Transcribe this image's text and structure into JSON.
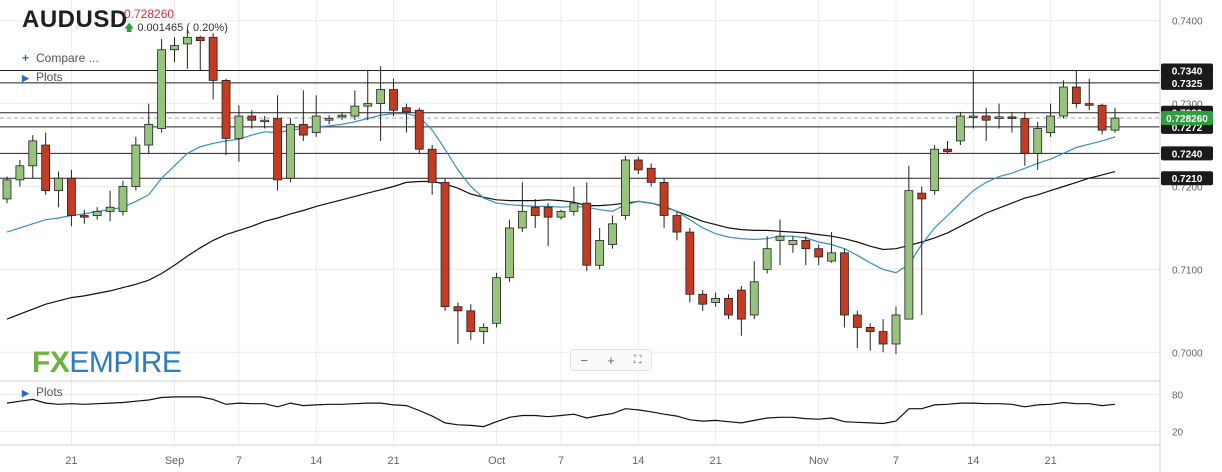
{
  "header": {
    "symbol": "AUDUSD",
    "price": "0.728260",
    "change": "0.001465 ( 0.20%)"
  },
  "menu": {
    "compare": "Compare ...",
    "plots": "Plots",
    "plots_lower": "Plots"
  },
  "zoom": {
    "minus": "−",
    "plus": "+",
    "fit": "⛶"
  },
  "logo": {
    "fx": "FX",
    "empire": "EMPIRE"
  },
  "colors": {
    "up": "#97c37c",
    "down": "#c23b22",
    "ma_fast": "#3a8fc0",
    "ma_slow": "#111111",
    "current": "#2e9e3e"
  },
  "chart_data": {
    "type": "candlestick",
    "ylim": [
      0.6975,
      0.7425
    ],
    "y_ticks": [
      0.7,
      0.71,
      0.72,
      0.73,
      0.74
    ],
    "x_tick_labels": [
      {
        "i": 5,
        "label": "21"
      },
      {
        "i": 13,
        "label": "Sep"
      },
      {
        "i": 18,
        "label": "7"
      },
      {
        "i": 24,
        "label": "14"
      },
      {
        "i": 30,
        "label": "21"
      },
      {
        "i": 38,
        "label": "Oct"
      },
      {
        "i": 43,
        "label": "7"
      },
      {
        "i": 49,
        "label": "14"
      },
      {
        "i": 55,
        "label": "21"
      },
      {
        "i": 63,
        "label": "Nov"
      },
      {
        "i": 69,
        "label": "7"
      },
      {
        "i": 75,
        "label": "14"
      },
      {
        "i": 81,
        "label": "21"
      }
    ],
    "horizontal_levels": [
      {
        "value": 0.734,
        "label": "0.7340"
      },
      {
        "value": 0.7325,
        "label": "0.7325"
      },
      {
        "value": 0.7289,
        "label": "0.7289"
      },
      {
        "value": 0.7272,
        "label": "0.7272"
      },
      {
        "value": 0.724,
        "label": "0.7240"
      },
      {
        "value": 0.721,
        "label": "0.7210"
      }
    ],
    "current_price": {
      "value": 0.72826,
      "label": "0.728260"
    },
    "candles": [
      [
        0.7185,
        0.7208,
        0.718,
        0.7212
      ],
      [
        0.7208,
        0.7225,
        0.72,
        0.7232
      ],
      [
        0.7225,
        0.7255,
        0.721,
        0.7262
      ],
      [
        0.725,
        0.7195,
        0.719,
        0.7265
      ],
      [
        0.7195,
        0.721,
        0.7175,
        0.7218
      ],
      [
        0.721,
        0.7165,
        0.7152,
        0.722
      ],
      [
        0.7165,
        0.7163,
        0.7155,
        0.7172
      ],
      [
        0.7165,
        0.717,
        0.716,
        0.7175
      ],
      [
        0.717,
        0.7175,
        0.7158,
        0.7195
      ],
      [
        0.717,
        0.72,
        0.7165,
        0.7207
      ],
      [
        0.72,
        0.725,
        0.7195,
        0.726
      ],
      [
        0.725,
        0.7275,
        0.724,
        0.73
      ],
      [
        0.727,
        0.7365,
        0.7265,
        0.7378
      ],
      [
        0.7365,
        0.737,
        0.735,
        0.738
      ],
      [
        0.7372,
        0.738,
        0.7342,
        0.739
      ],
      [
        0.738,
        0.7376,
        0.734,
        0.7382
      ],
      [
        0.738,
        0.7328,
        0.7305,
        0.7385
      ],
      [
        0.7328,
        0.7258,
        0.7238,
        0.733
      ],
      [
        0.7258,
        0.7285,
        0.723,
        0.7298
      ],
      [
        0.7285,
        0.728,
        0.727,
        0.7292
      ],
      [
        0.728,
        0.728,
        0.727,
        0.7285
      ],
      [
        0.7282,
        0.7208,
        0.7195,
        0.731
      ],
      [
        0.721,
        0.7275,
        0.7205,
        0.7282
      ],
      [
        0.7275,
        0.7262,
        0.7255,
        0.7316
      ],
      [
        0.7265,
        0.7285,
        0.726,
        0.731
      ],
      [
        0.728,
        0.7282,
        0.7275,
        0.7286
      ],
      [
        0.7284,
        0.7286,
        0.728,
        0.729
      ],
      [
        0.7285,
        0.7297,
        0.728,
        0.7316
      ],
      [
        0.7297,
        0.73,
        0.728,
        0.734
      ],
      [
        0.73,
        0.7317,
        0.7255,
        0.7345
      ],
      [
        0.7317,
        0.7292,
        0.7285,
        0.733
      ],
      [
        0.7295,
        0.729,
        0.7265,
        0.73
      ],
      [
        0.7292,
        0.7245,
        0.724,
        0.7295
      ],
      [
        0.7245,
        0.7205,
        0.719,
        0.725
      ],
      [
        0.7205,
        0.7055,
        0.705,
        0.721
      ],
      [
        0.7055,
        0.705,
        0.701,
        0.706
      ],
      [
        0.705,
        0.7025,
        0.7015,
        0.7058
      ],
      [
        0.7025,
        0.703,
        0.701,
        0.7035
      ],
      [
        0.7035,
        0.709,
        0.703,
        0.7096
      ],
      [
        0.709,
        0.715,
        0.7085,
        0.716
      ],
      [
        0.715,
        0.717,
        0.7145,
        0.7205
      ],
      [
        0.7175,
        0.7165,
        0.715,
        0.7185
      ],
      [
        0.7175,
        0.7163,
        0.7128,
        0.718
      ],
      [
        0.7163,
        0.717,
        0.716,
        0.7172
      ],
      [
        0.717,
        0.718,
        0.7165,
        0.72
      ],
      [
        0.718,
        0.7105,
        0.7098,
        0.7205
      ],
      [
        0.7105,
        0.7135,
        0.71,
        0.715
      ],
      [
        0.713,
        0.7155,
        0.7125,
        0.7165
      ],
      [
        0.7165,
        0.7232,
        0.716,
        0.7237
      ],
      [
        0.7232,
        0.722,
        0.7215,
        0.7236
      ],
      [
        0.7222,
        0.7205,
        0.72,
        0.7228
      ],
      [
        0.7205,
        0.7165,
        0.715,
        0.721
      ],
      [
        0.7165,
        0.7145,
        0.7135,
        0.717
      ],
      [
        0.7145,
        0.707,
        0.706,
        0.715
      ],
      [
        0.707,
        0.7058,
        0.705,
        0.7075
      ],
      [
        0.706,
        0.7065,
        0.7055,
        0.7072
      ],
      [
        0.7065,
        0.7045,
        0.704,
        0.707
      ],
      [
        0.7075,
        0.704,
        0.702,
        0.708
      ],
      [
        0.7045,
        0.7085,
        0.704,
        0.711
      ],
      [
        0.71,
        0.7125,
        0.7095,
        0.714
      ],
      [
        0.7135,
        0.714,
        0.7105,
        0.716
      ],
      [
        0.713,
        0.7135,
        0.712,
        0.714
      ],
      [
        0.7135,
        0.7125,
        0.7105,
        0.714
      ],
      [
        0.7125,
        0.7115,
        0.7105,
        0.713
      ],
      [
        0.711,
        0.712,
        0.7108,
        0.7145
      ],
      [
        0.712,
        0.7045,
        0.703,
        0.7125
      ],
      [
        0.7045,
        0.703,
        0.7005,
        0.705
      ],
      [
        0.703,
        0.7025,
        0.7002,
        0.7035
      ],
      [
        0.7025,
        0.701,
        0.7,
        0.704
      ],
      [
        0.701,
        0.7045,
        0.6998,
        0.7055
      ],
      [
        0.704,
        0.7195,
        0.704,
        0.7225
      ],
      [
        0.7192,
        0.7185,
        0.7045,
        0.72
      ],
      [
        0.7195,
        0.7245,
        0.719,
        0.725
      ],
      [
        0.7245,
        0.7242,
        0.724,
        0.7255
      ],
      [
        0.7255,
        0.7285,
        0.725,
        0.729
      ],
      [
        0.7285,
        0.7285,
        0.727,
        0.734
      ],
      [
        0.7285,
        0.728,
        0.7255,
        0.7295
      ],
      [
        0.7282,
        0.7284,
        0.727,
        0.73
      ],
      [
        0.7284,
        0.7282,
        0.7265,
        0.729
      ],
      [
        0.7282,
        0.724,
        0.7225,
        0.729
      ],
      [
        0.724,
        0.727,
        0.722,
        0.7278
      ],
      [
        0.7265,
        0.7285,
        0.726,
        0.73
      ],
      [
        0.7285,
        0.732,
        0.7282,
        0.7328
      ],
      [
        0.732,
        0.73,
        0.7295,
        0.734
      ],
      [
        0.73,
        0.7298,
        0.7292,
        0.733
      ],
      [
        0.7298,
        0.7268,
        0.7263,
        0.73
      ],
      [
        0.7268,
        0.72826,
        0.7265,
        0.7295
      ]
    ],
    "ma_fast": [
      0.7145,
      0.715,
      0.7155,
      0.716,
      0.7162,
      0.7165,
      0.7167,
      0.717,
      0.7172,
      0.7175,
      0.7182,
      0.719,
      0.721,
      0.7225,
      0.724,
      0.7248,
      0.7252,
      0.7255,
      0.7257,
      0.7262,
      0.7266,
      0.7265,
      0.7268,
      0.727,
      0.7272,
      0.7273,
      0.7275,
      0.7278,
      0.7282,
      0.7286,
      0.7288,
      0.7288,
      0.7284,
      0.7268,
      0.7245,
      0.722,
      0.72,
      0.7186,
      0.718,
      0.7178,
      0.7177,
      0.7176,
      0.7176,
      0.7175,
      0.7176,
      0.7175,
      0.7172,
      0.717,
      0.7178,
      0.7182,
      0.718,
      0.7175,
      0.717,
      0.716,
      0.715,
      0.7143,
      0.7139,
      0.7137,
      0.7136,
      0.7137,
      0.714,
      0.714,
      0.7138,
      0.7133,
      0.713,
      0.7125,
      0.7117,
      0.7108,
      0.71,
      0.7096,
      0.7106,
      0.713,
      0.715,
      0.7165,
      0.718,
      0.7195,
      0.7205,
      0.7212,
      0.7216,
      0.7222,
      0.7228,
      0.7233,
      0.724,
      0.7247,
      0.7251,
      0.7255,
      0.726
    ],
    "ma_slow": [
      0.704,
      0.7046,
      0.7052,
      0.7058,
      0.7062,
      0.7066,
      0.7068,
      0.7071,
      0.7074,
      0.7078,
      0.7082,
      0.7087,
      0.7095,
      0.7105,
      0.7116,
      0.7126,
      0.7135,
      0.7142,
      0.7147,
      0.7152,
      0.7158,
      0.7162,
      0.7167,
      0.7171,
      0.7176,
      0.718,
      0.7184,
      0.7188,
      0.7192,
      0.7196,
      0.72,
      0.7205,
      0.7206,
      0.7206,
      0.7203,
      0.7198,
      0.7191,
      0.7187,
      0.7184,
      0.7183,
      0.7183,
      0.7183,
      0.7184,
      0.7183,
      0.7181,
      0.7177,
      0.7177,
      0.7178,
      0.718,
      0.7182,
      0.718,
      0.7176,
      0.717,
      0.7164,
      0.7158,
      0.7154,
      0.715,
      0.7148,
      0.7147,
      0.7147,
      0.7146,
      0.7145,
      0.7144,
      0.7142,
      0.714,
      0.7137,
      0.7133,
      0.7128,
      0.7124,
      0.7125,
      0.7129,
      0.7133,
      0.7138,
      0.7144,
      0.7152,
      0.716,
      0.7168,
      0.7174,
      0.718,
      0.7186,
      0.719,
      0.7195,
      0.72,
      0.7205,
      0.721,
      0.7214,
      0.7218
    ],
    "oscillator": {
      "y_ticks": [
        20,
        80
      ],
      "ylim": [
        0,
        100
      ],
      "values": [
        66,
        69,
        72,
        66,
        64,
        65,
        64,
        65,
        66,
        67,
        69,
        71,
        75,
        76,
        76,
        76,
        72,
        64,
        66,
        65,
        65,
        60,
        66,
        62,
        63,
        64,
        64,
        65,
        66,
        66,
        63,
        62,
        54,
        45,
        34,
        31,
        30,
        28,
        36,
        43,
        46,
        46,
        44,
        46,
        48,
        42,
        46,
        49,
        57,
        55,
        52,
        48,
        45,
        39,
        37,
        38,
        36,
        34,
        38,
        42,
        43,
        43,
        41,
        40,
        42,
        36,
        35,
        34,
        33,
        37,
        57,
        57,
        63,
        64,
        66,
        66,
        65,
        65,
        64,
        60,
        63,
        64,
        67,
        65,
        65,
        62,
        64
      ]
    }
  }
}
